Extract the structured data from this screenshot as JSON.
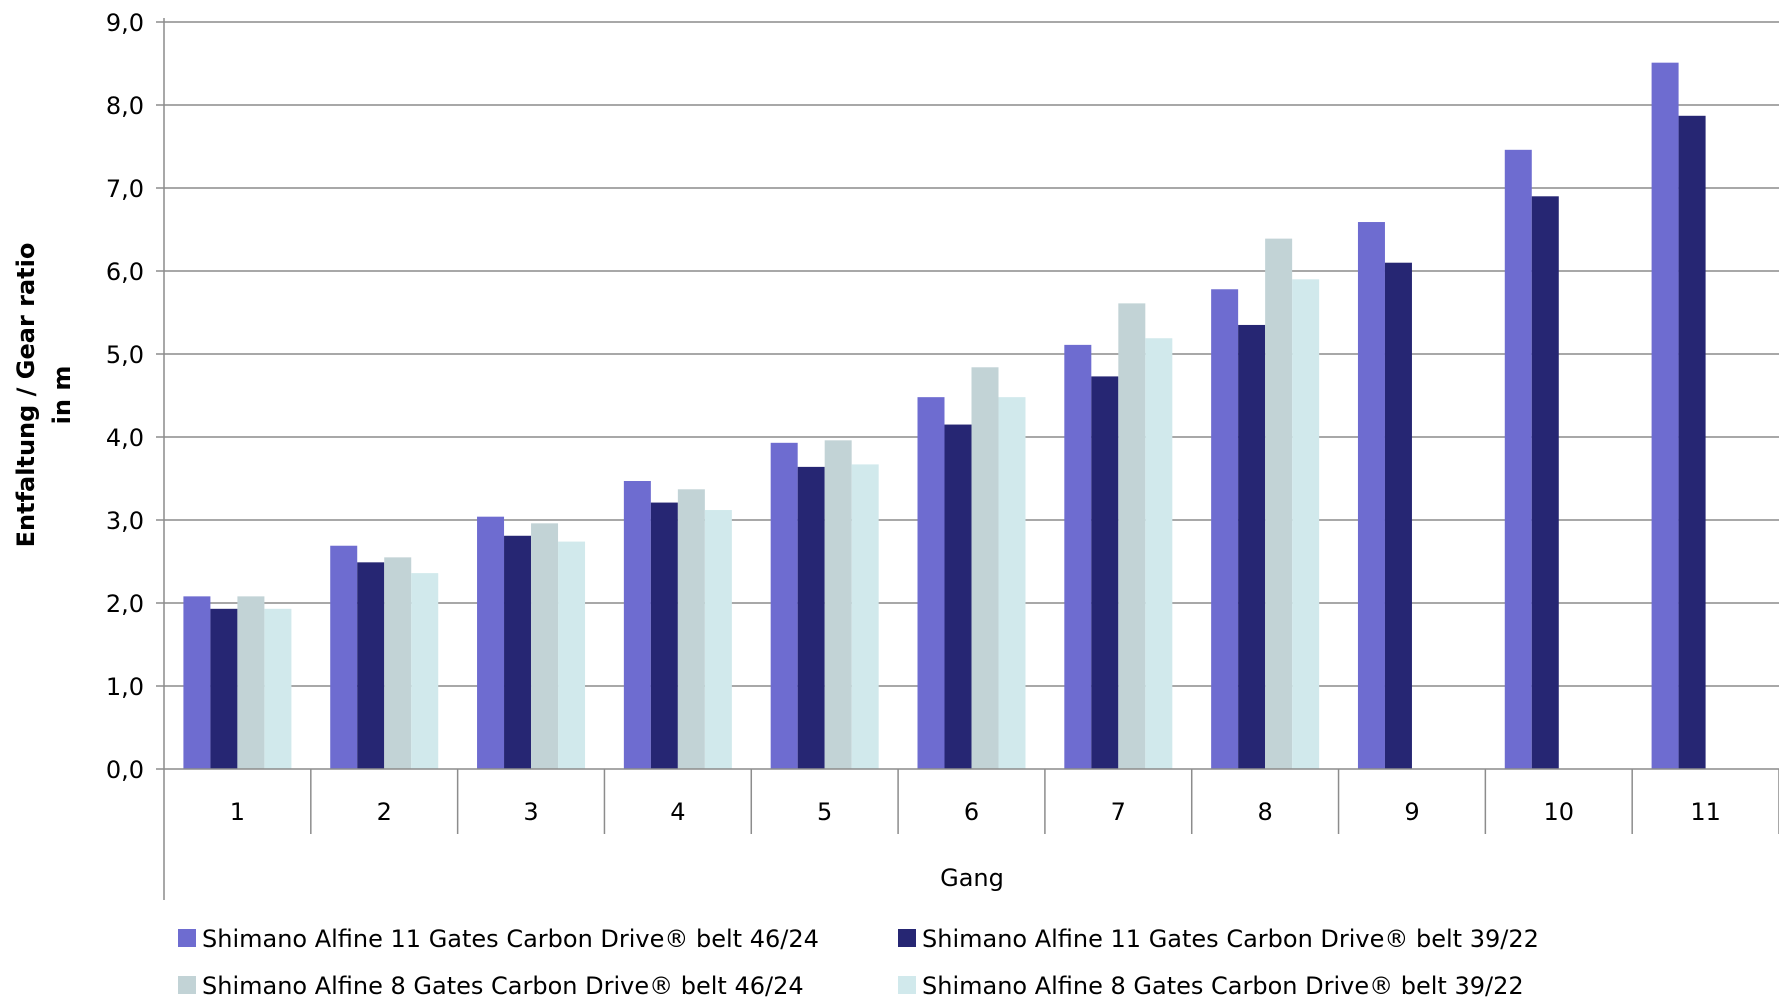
{
  "chart_data": {
    "type": "bar",
    "xlabel": "Gang",
    "ylabel_lines": [
      "Entfaltung / Gear ratio",
      "in m"
    ],
    "ylim": [
      0,
      9
    ],
    "ytick_step": 1,
    "ytick_labels": [
      "0,0",
      "1,0",
      "2,0",
      "3,0",
      "4,0",
      "5,0",
      "6,0",
      "7,0",
      "8,0",
      "9,0"
    ],
    "grid": true,
    "legend_position": "bottom",
    "categories": [
      "1",
      "2",
      "3",
      "4",
      "5",
      "6",
      "7",
      "8",
      "9",
      "10",
      "11"
    ],
    "series": [
      {
        "name": "Shimano Alfine 11 Gates Carbon Drive® belt 46/24",
        "color": "#6e6cd0",
        "values": [
          2.08,
          2.69,
          3.04,
          3.47,
          3.93,
          4.48,
          5.11,
          5.78,
          6.59,
          7.46,
          8.51
        ]
      },
      {
        "name": "Shimano Alfine 11 Gates Carbon Drive® belt 39/22",
        "color": "#262673",
        "values": [
          1.93,
          2.49,
          2.81,
          3.21,
          3.64,
          4.15,
          4.73,
          5.35,
          6.1,
          6.9,
          7.87
        ]
      },
      {
        "name": "Shimano Alfine 8 Gates Carbon Drive® belt 46/24",
        "color": "#c2d3d6",
        "values": [
          2.08,
          2.55,
          2.96,
          3.37,
          3.96,
          4.84,
          5.61,
          6.39,
          null,
          null,
          null
        ]
      },
      {
        "name": "Shimano Alfine 8 Gates Carbon Drive® belt 39/22",
        "color": "#d1e9ec",
        "values": [
          1.93,
          2.36,
          2.74,
          3.12,
          3.67,
          4.48,
          5.19,
          5.9,
          null,
          null,
          null
        ]
      }
    ]
  }
}
